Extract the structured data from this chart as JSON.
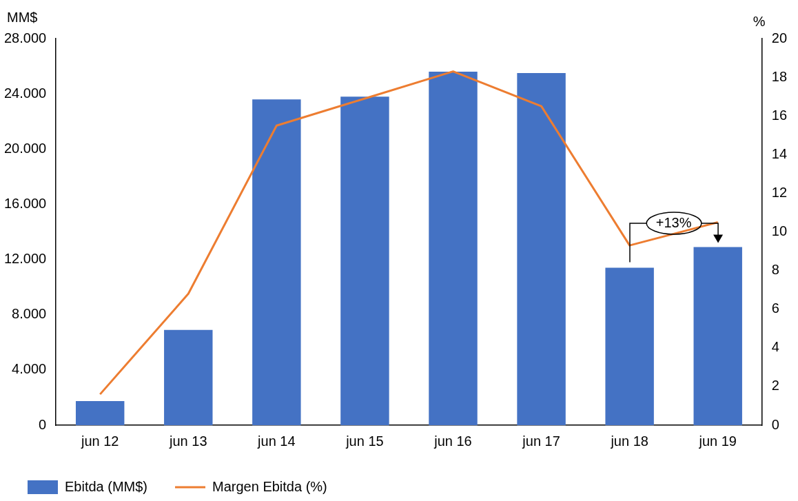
{
  "chart_data": {
    "type": "bar",
    "ylabel": "MM$",
    "y2label": "%",
    "categories": [
      "jun 12",
      "jun 13",
      "jun 14",
      "jun 15",
      "jun 16",
      "jun 17",
      "jun 18",
      "jun 19"
    ],
    "series": [
      {
        "name": "Ebitda (MM$)",
        "color": "#4472c4",
        "values": [
          1750,
          6900,
          23600,
          23800,
          25600,
          25500,
          11400,
          12900
        ]
      },
      {
        "name": "Margen Ebitda (%)",
        "type": "line",
        "axis": "y2",
        "color": "#ed7d31",
        "values": [
          1.6,
          6.8,
          15.5,
          16.9,
          18.3,
          16.5,
          9.3,
          10.5
        ]
      }
    ],
    "ylim": [
      0,
      28000
    ],
    "yticks": [
      {
        "value": 0,
        "label": "0"
      },
      {
        "value": 4000,
        "label": "4.000"
      },
      {
        "value": 8000,
        "label": "8.000"
      },
      {
        "value": 12000,
        "label": "12.000"
      },
      {
        "value": 16000,
        "label": "16.000"
      },
      {
        "value": 20000,
        "label": "20.000"
      },
      {
        "value": 24000,
        "label": "24.000"
      },
      {
        "value": 28000,
        "label": "28.000"
      }
    ],
    "y2lim": [
      0,
      20
    ],
    "y2ticks": [
      0,
      2,
      4,
      6,
      8,
      10,
      12,
      14,
      16,
      18,
      20
    ],
    "annotations": [
      "+13%"
    ],
    "grid": false,
    "legend": "bottom left",
    "marker": "none",
    "line_style": "solid"
  }
}
